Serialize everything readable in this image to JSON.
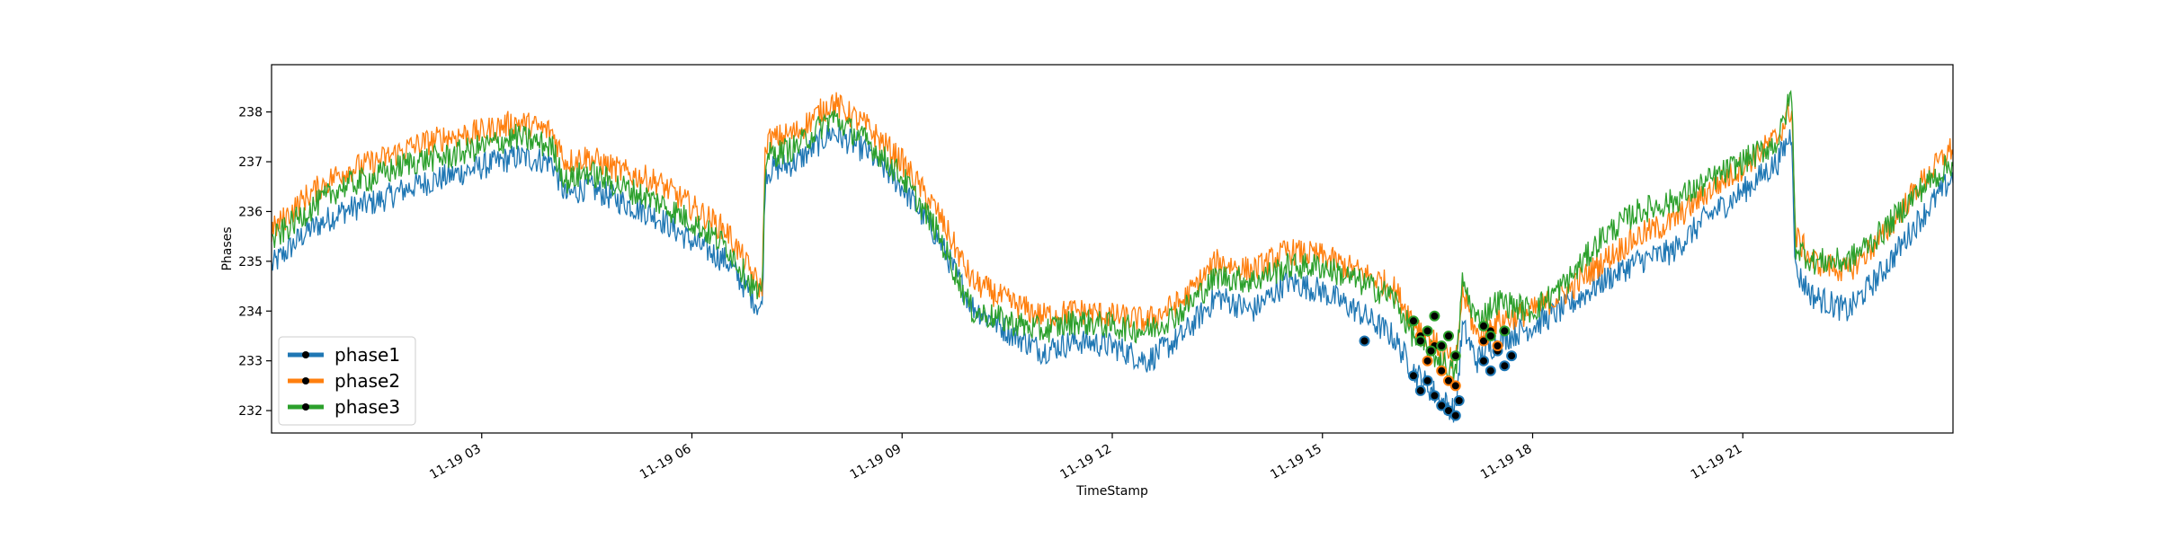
{
  "chart_data": {
    "type": "line",
    "title": "",
    "xlabel": "TimeStamp",
    "ylabel": "Phases",
    "x_range_hours": [
      0,
      24
    ],
    "xlim": [
      "11-19 00:00",
      "11-20 00:00"
    ],
    "ylim": [
      231.55,
      238.95
    ],
    "x_tick_labels": [
      "11-19 03",
      "11-19 06",
      "11-19 09",
      "11-19 12",
      "11-19 15",
      "11-19 18",
      "11-19 21"
    ],
    "x_tick_hours": [
      3,
      6,
      9,
      12,
      15,
      18,
      21
    ],
    "y_ticks": [
      232,
      233,
      234,
      235,
      236,
      237,
      238
    ],
    "grid": false,
    "legend_position": "lower-left",
    "series": [
      {
        "name": "phase1",
        "color": "#1f77b4",
        "x": [
          0,
          0.5,
          1,
          1.5,
          2,
          2.5,
          3,
          3.5,
          4,
          4.2,
          4.5,
          5,
          5.5,
          6,
          6.5,
          7.0,
          7.05,
          7.5,
          8,
          8.5,
          9,
          9.5,
          10,
          10.5,
          11,
          11.5,
          12,
          12.5,
          13,
          13.5,
          14,
          14.5,
          15,
          15.5,
          16,
          16.3,
          16.5,
          16.7,
          16.9,
          17.0,
          17.2,
          17.5,
          18,
          18.5,
          19,
          19.5,
          20,
          20.5,
          21,
          21.5,
          21.7,
          21.75,
          22,
          22.5,
          23,
          23.5,
          24
        ],
        "y": [
          234.9,
          235.6,
          236.0,
          236.2,
          236.5,
          236.7,
          236.9,
          237.1,
          237.0,
          236.3,
          236.5,
          236.2,
          235.9,
          235.4,
          235.0,
          234.0,
          236.8,
          237.0,
          237.6,
          237.2,
          236.5,
          235.5,
          234.1,
          233.6,
          233.2,
          233.4,
          233.3,
          233.0,
          233.5,
          234.3,
          234.0,
          234.6,
          234.4,
          234.0,
          233.5,
          232.8,
          232.5,
          232.2,
          232.0,
          233.7,
          233.0,
          233.4,
          233.7,
          234.1,
          234.6,
          235.0,
          235.2,
          235.9,
          236.4,
          237.0,
          237.6,
          234.8,
          234.3,
          234.0,
          234.8,
          235.8,
          236.7
        ]
      },
      {
        "name": "phase2",
        "color": "#ff7f0e",
        "x": [
          0,
          0.5,
          1,
          1.5,
          2,
          2.5,
          3,
          3.5,
          4,
          4.2,
          4.5,
          5,
          5.5,
          6,
          6.5,
          7.0,
          7.05,
          7.5,
          8,
          8.5,
          9,
          9.5,
          10,
          10.5,
          11,
          11.5,
          12,
          12.5,
          13,
          13.5,
          14,
          14.5,
          15,
          15.5,
          16,
          16.3,
          16.5,
          16.7,
          16.9,
          17.0,
          17.2,
          17.5,
          18,
          18.5,
          19,
          19.5,
          20,
          20.5,
          21,
          21.5,
          21.7,
          21.75,
          22,
          22.5,
          23,
          23.5,
          24
        ],
        "y": [
          235.6,
          236.3,
          236.8,
          237.0,
          237.3,
          237.5,
          237.6,
          237.8,
          237.6,
          237.0,
          237.1,
          236.8,
          236.6,
          236.1,
          235.6,
          234.4,
          237.4,
          237.6,
          238.2,
          237.7,
          237.0,
          236.0,
          234.6,
          234.2,
          233.9,
          234.0,
          233.9,
          233.8,
          234.2,
          235.0,
          234.8,
          235.2,
          235.1,
          234.8,
          234.5,
          233.8,
          233.5,
          233.2,
          232.9,
          234.4,
          233.5,
          233.8,
          234.0,
          234.4,
          235.0,
          235.5,
          235.8,
          236.4,
          236.9,
          237.5,
          238.1,
          235.5,
          235.0,
          234.8,
          235.5,
          236.5,
          237.3
        ]
      },
      {
        "name": "phase3",
        "color": "#2ca02c",
        "x": [
          0,
          0.5,
          1,
          1.5,
          2,
          2.5,
          3,
          3.5,
          4,
          4.2,
          4.5,
          5,
          5.5,
          6,
          6.5,
          7.0,
          7.05,
          7.5,
          8,
          8.5,
          9,
          9.5,
          10,
          10.5,
          11,
          11.5,
          12,
          12.5,
          13,
          13.5,
          14,
          14.5,
          15,
          15.5,
          16,
          16.3,
          16.5,
          16.7,
          16.9,
          17.0,
          17.2,
          17.5,
          18,
          18.5,
          19,
          19.5,
          20,
          20.5,
          21,
          21.5,
          21.7,
          21.75,
          22,
          22.5,
          23,
          23.5,
          24
        ],
        "y": [
          235.4,
          236.0,
          236.5,
          236.7,
          237.0,
          237.1,
          237.3,
          237.5,
          237.3,
          236.6,
          236.8,
          236.5,
          236.2,
          235.8,
          235.3,
          234.2,
          237.1,
          237.3,
          237.9,
          237.4,
          236.7,
          235.6,
          234.0,
          233.8,
          233.6,
          233.8,
          233.7,
          233.6,
          234.0,
          234.7,
          234.6,
          234.9,
          234.9,
          234.6,
          234.3,
          233.5,
          233.2,
          233.0,
          232.7,
          234.6,
          233.8,
          234.2,
          234.0,
          234.6,
          235.5,
          236.0,
          236.2,
          236.6,
          237.0,
          237.4,
          238.4,
          235.3,
          235.0,
          235.0,
          235.6,
          236.4,
          237.0
        ]
      }
    ],
    "markers": [
      {
        "series": "phase1",
        "x": [
          15.6,
          16.3,
          16.4,
          16.5,
          16.6,
          16.7,
          16.8,
          16.9,
          16.95,
          17.3,
          17.4,
          17.5,
          17.6,
          17.7
        ],
        "y": [
          233.4,
          232.7,
          232.4,
          232.6,
          232.3,
          232.1,
          232.0,
          231.9,
          232.2,
          233.0,
          232.8,
          233.2,
          232.9,
          233.1
        ]
      },
      {
        "series": "phase2",
        "x": [
          16.4,
          16.5,
          16.6,
          16.7,
          16.8,
          16.9,
          17.3,
          17.4,
          17.5
        ],
        "y": [
          233.5,
          233.0,
          233.3,
          232.8,
          232.6,
          232.5,
          233.4,
          233.6,
          233.3
        ]
      },
      {
        "series": "phase3",
        "x": [
          16.3,
          16.4,
          16.5,
          16.55,
          16.6,
          16.7,
          16.8,
          16.9,
          17.3,
          17.4,
          17.6
        ],
        "y": [
          233.8,
          233.4,
          233.6,
          233.2,
          233.9,
          233.3,
          233.5,
          233.1,
          233.7,
          233.5,
          233.6
        ]
      }
    ],
    "legend": [
      {
        "label": "phase1",
        "color": "#1f77b4"
      },
      {
        "label": "phase2",
        "color": "#ff7f0e"
      },
      {
        "label": "phase3",
        "color": "#2ca02c"
      }
    ]
  }
}
